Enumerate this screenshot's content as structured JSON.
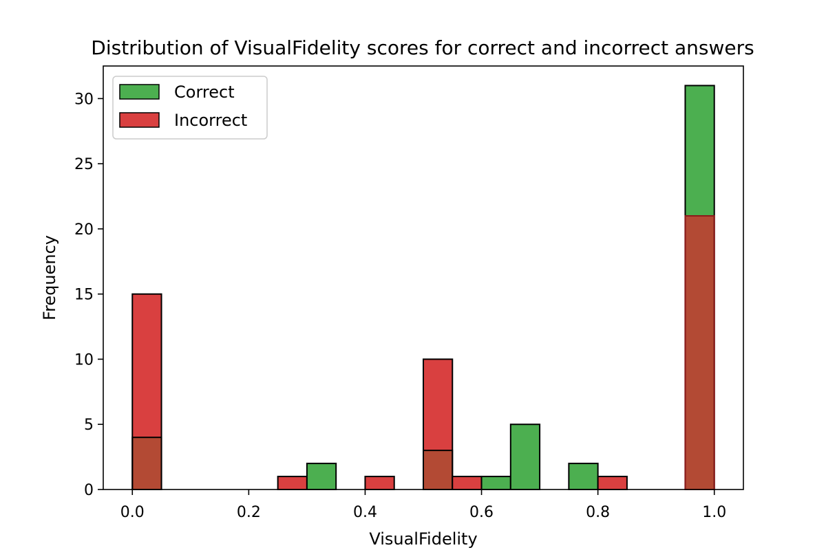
{
  "chart_data": {
    "type": "bar",
    "title": "Distribution of VisualFidelity scores for correct and incorrect answers",
    "xlabel": "VisualFidelity",
    "ylabel": "Frequency",
    "xlim": [
      -0.05,
      1.05
    ],
    "ylim": [
      0,
      32.5
    ],
    "xticks": [
      {
        "value": 0.0,
        "label": "0.0"
      },
      {
        "value": 0.2,
        "label": "0.2"
      },
      {
        "value": 0.4,
        "label": "0.4"
      },
      {
        "value": 0.6,
        "label": "0.6"
      },
      {
        "value": 0.8,
        "label": "0.8"
      },
      {
        "value": 1.0,
        "label": "1.0"
      }
    ],
    "yticks": [
      {
        "value": 0,
        "label": "0"
      },
      {
        "value": 5,
        "label": "5"
      },
      {
        "value": 10,
        "label": "10"
      },
      {
        "value": 15,
        "label": "15"
      },
      {
        "value": 20,
        "label": "20"
      },
      {
        "value": 25,
        "label": "25"
      },
      {
        "value": 30,
        "label": "30"
      }
    ],
    "bin_edges": [
      0.0,
      0.05,
      0.1,
      0.15,
      0.2,
      0.25,
      0.3,
      0.35,
      0.4,
      0.45,
      0.5,
      0.55,
      0.6,
      0.65,
      0.7,
      0.75,
      0.8,
      0.85,
      0.9,
      0.95,
      1.0
    ],
    "series": [
      {
        "name": "Correct",
        "color": "#4caf50",
        "values": [
          4,
          0,
          0,
          0,
          0,
          0,
          2,
          0,
          0,
          0,
          3,
          0,
          1,
          5,
          0,
          2,
          0,
          0,
          0,
          31
        ]
      },
      {
        "name": "Incorrect",
        "color": "#d94040",
        "values": [
          15,
          0,
          0,
          0,
          0,
          1,
          0,
          0,
          1,
          0,
          10,
          1,
          0,
          0,
          0,
          0,
          1,
          0,
          0,
          21
        ]
      }
    ],
    "overlap_color": "#b34a34",
    "legend_position": "upper-left",
    "grid": false
  }
}
